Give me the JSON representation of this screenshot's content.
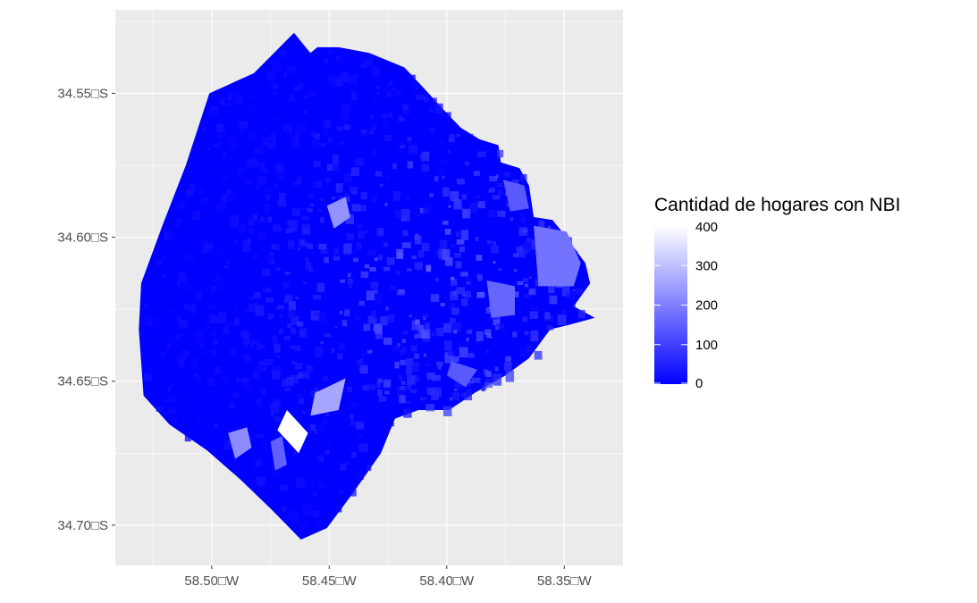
{
  "map": {
    "x_ticks": [
      {
        "value": -58.5,
        "label": "58.50□W"
      },
      {
        "value": -58.45,
        "label": "58.45□W"
      },
      {
        "value": -58.4,
        "label": "58.40□W"
      },
      {
        "value": -58.35,
        "label": "58.35□W"
      }
    ],
    "y_ticks": [
      {
        "value": -34.55,
        "label": "34.55□S"
      },
      {
        "value": -34.6,
        "label": "34.60□S"
      },
      {
        "value": -34.65,
        "label": "34.65□S"
      },
      {
        "value": -34.7,
        "label": "34.70□S"
      }
    ],
    "xlim": [
      -58.541,
      -58.325
    ],
    "ylim": [
      -34.714,
      -34.521
    ],
    "panel_background": "#ebebeb",
    "grid_color": "#ffffff",
    "fill_low": "#0000ff",
    "fill_high": "#ffffff"
  },
  "legend": {
    "title": "Cantidad de hogares con NBI",
    "breaks": [
      {
        "value": 400,
        "label": "400"
      },
      {
        "value": 300,
        "label": "300"
      },
      {
        "value": 200,
        "label": "200"
      },
      {
        "value": 100,
        "label": "100"
      },
      {
        "value": 0,
        "label": "0"
      }
    ],
    "range": [
      0,
      400
    ]
  },
  "regions": {
    "city_outline": [
      [
        -58.465,
        -34.529
      ],
      [
        -58.461,
        -34.533
      ],
      [
        -58.458,
        -34.536
      ],
      [
        -58.455,
        -34.534
      ],
      [
        -58.446,
        -34.534
      ],
      [
        -58.433,
        -34.536
      ],
      [
        -58.418,
        -34.541
      ],
      [
        -58.41,
        -34.548
      ],
      [
        -58.401,
        -34.556
      ],
      [
        -58.394,
        -34.562
      ],
      [
        -58.386,
        -34.566
      ],
      [
        -58.378,
        -34.568
      ],
      [
        -58.377,
        -34.574
      ],
      [
        -58.369,
        -34.576
      ],
      [
        -58.365,
        -34.582
      ],
      [
        -58.363,
        -34.593
      ],
      [
        -58.355,
        -34.594
      ],
      [
        -58.35,
        -34.599
      ],
      [
        -58.341,
        -34.609
      ],
      [
        -58.339,
        -34.616
      ],
      [
        -58.346,
        -34.624
      ],
      [
        -58.337,
        -34.628
      ],
      [
        -58.346,
        -34.63
      ],
      [
        -58.356,
        -34.632
      ],
      [
        -58.365,
        -34.642
      ],
      [
        -58.375,
        -34.648
      ],
      [
        -58.388,
        -34.654
      ],
      [
        -58.399,
        -34.66
      ],
      [
        -58.412,
        -34.66
      ],
      [
        -58.422,
        -34.663
      ],
      [
        -58.428,
        -34.675
      ],
      [
        -58.44,
        -34.689
      ],
      [
        -58.451,
        -34.701
      ],
      [
        -58.462,
        -34.705
      ],
      [
        -58.474,
        -34.695
      ],
      [
        -58.488,
        -34.684
      ],
      [
        -58.502,
        -34.674
      ],
      [
        -58.518,
        -34.665
      ],
      [
        -58.529,
        -34.655
      ],
      [
        -58.531,
        -34.632
      ],
      [
        -58.53,
        -34.616
      ],
      [
        -58.521,
        -34.596
      ],
      [
        -58.511,
        -34.575
      ],
      [
        -58.501,
        -34.55
      ],
      [
        -58.482,
        -34.543
      ]
    ],
    "highlights": [
      {
        "value": 400,
        "points": [
          [
            -58.468,
            -34.66
          ],
          [
            -58.459,
            -34.668
          ],
          [
            -58.463,
            -34.675
          ],
          [
            -58.472,
            -34.667
          ]
        ]
      },
      {
        "value": 260,
        "points": [
          [
            -58.456,
            -34.654
          ],
          [
            -58.443,
            -34.649
          ],
          [
            -58.446,
            -34.66
          ],
          [
            -58.458,
            -34.662
          ]
        ]
      },
      {
        "value": 230,
        "points": [
          [
            -58.451,
            -34.589
          ],
          [
            -58.443,
            -34.586
          ],
          [
            -58.441,
            -34.593
          ],
          [
            -58.448,
            -34.597
          ]
        ]
      },
      {
        "value": 180,
        "points": [
          [
            -58.363,
            -34.596
          ],
          [
            -58.349,
            -34.598
          ],
          [
            -58.343,
            -34.609
          ],
          [
            -58.346,
            -34.617
          ],
          [
            -58.361,
            -34.617
          ]
        ]
      },
      {
        "value": 220,
        "points": [
          [
            -58.493,
            -34.668
          ],
          [
            -58.485,
            -34.666
          ],
          [
            -58.483,
            -34.673
          ],
          [
            -58.49,
            -34.677
          ]
        ]
      },
      {
        "value": 160,
        "points": [
          [
            -58.383,
            -34.615
          ],
          [
            -58.371,
            -34.617
          ],
          [
            -58.371,
            -34.627
          ],
          [
            -58.381,
            -34.628
          ]
        ]
      },
      {
        "value": 140,
        "points": [
          [
            -58.398,
            -34.643
          ],
          [
            -58.387,
            -34.646
          ],
          [
            -58.392,
            -34.652
          ],
          [
            -58.4,
            -34.648
          ]
        ]
      },
      {
        "value": 140,
        "points": [
          [
            -58.376,
            -34.58
          ],
          [
            -58.367,
            -34.582
          ],
          [
            -58.365,
            -34.59
          ],
          [
            -58.373,
            -34.591
          ]
        ]
      },
      {
        "value": 150,
        "points": [
          [
            -58.475,
            -34.671
          ],
          [
            -58.47,
            -34.669
          ],
          [
            -58.468,
            -34.679
          ],
          [
            -58.473,
            -34.681
          ]
        ]
      }
    ]
  }
}
